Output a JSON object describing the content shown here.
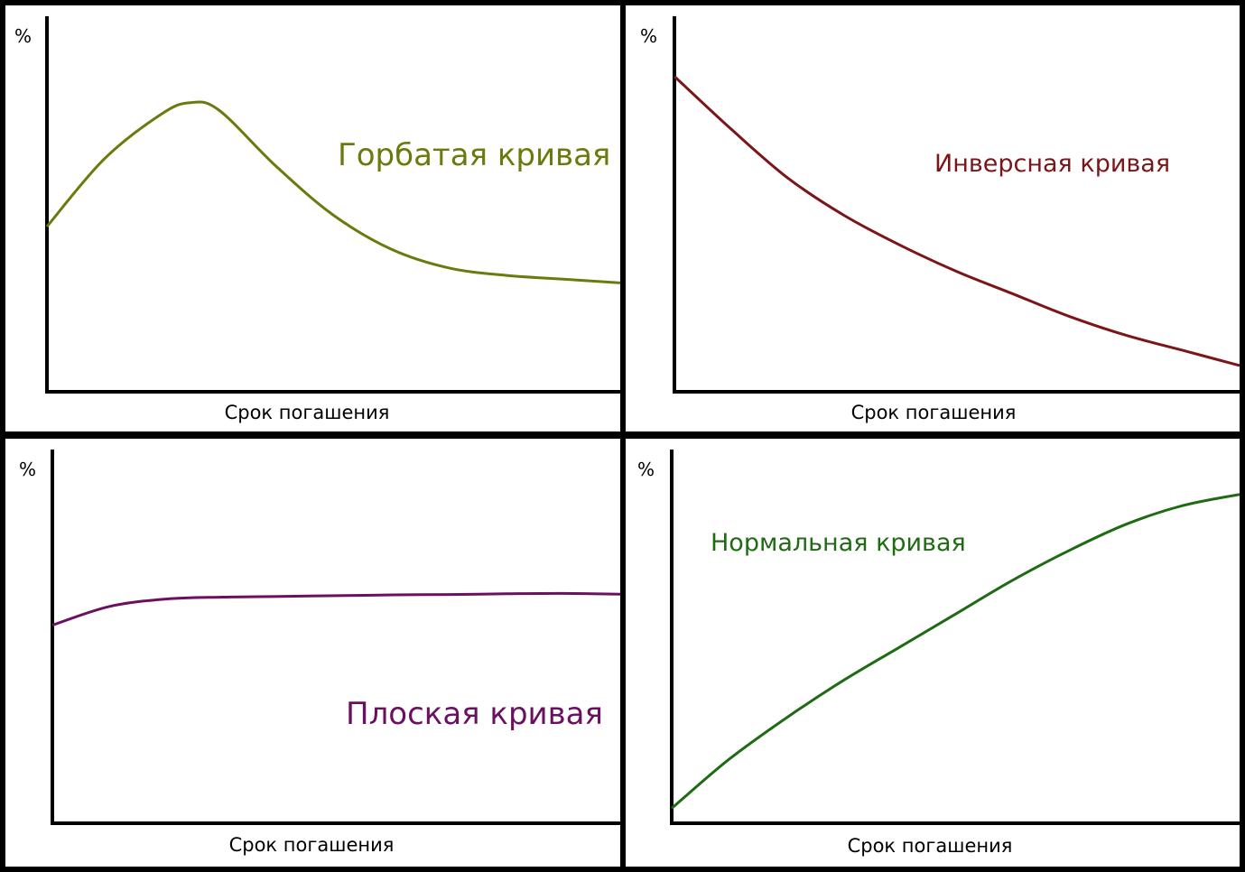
{
  "chart_data": [
    {
      "type": "line",
      "title": "",
      "xlabel": "Срок погашения",
      "ylabel": "%",
      "series": [
        {
          "name": "Горбатая кривая",
          "color": "#6b7a0d",
          "x": [
            0,
            0.1,
            0.2,
            0.25,
            0.3,
            0.4,
            0.5,
            0.6,
            0.7,
            0.8,
            0.9,
            1.0
          ],
          "y": [
            0.44,
            0.62,
            0.74,
            0.77,
            0.75,
            0.6,
            0.47,
            0.38,
            0.33,
            0.31,
            0.3,
            0.29
          ]
        }
      ]
    },
    {
      "type": "line",
      "title": "",
      "xlabel": "Срок погашения",
      "ylabel": "%",
      "series": [
        {
          "name": "Инверсная кривая",
          "color": "#7a1518",
          "x": [
            0,
            0.1,
            0.2,
            0.3,
            0.4,
            0.5,
            0.6,
            0.7,
            0.8,
            0.9,
            1.0
          ],
          "y": [
            0.84,
            0.7,
            0.57,
            0.47,
            0.39,
            0.32,
            0.26,
            0.2,
            0.15,
            0.11,
            0.07
          ]
        }
      ]
    },
    {
      "type": "line",
      "title": "",
      "xlabel": "Срок погашения",
      "ylabel": "%",
      "series": [
        {
          "name": "Плоская кривая",
          "color": "#6b1060",
          "x": [
            0,
            0.1,
            0.2,
            0.3,
            0.4,
            0.5,
            0.6,
            0.7,
            0.8,
            0.9,
            1.0
          ],
          "y": [
            0.53,
            0.58,
            0.6,
            0.605,
            0.607,
            0.609,
            0.611,
            0.612,
            0.614,
            0.615,
            0.613
          ]
        }
      ]
    },
    {
      "type": "line",
      "title": "",
      "xlabel": "Срок погашения",
      "ylabel": "%",
      "series": [
        {
          "name": "Нормальная кривая",
          "color": "#1f6b14",
          "x": [
            0,
            0.1,
            0.2,
            0.3,
            0.4,
            0.5,
            0.6,
            0.7,
            0.8,
            0.9,
            1.0
          ],
          "y": [
            0.04,
            0.17,
            0.28,
            0.38,
            0.47,
            0.56,
            0.65,
            0.73,
            0.8,
            0.85,
            0.88
          ]
        }
      ]
    }
  ]
}
